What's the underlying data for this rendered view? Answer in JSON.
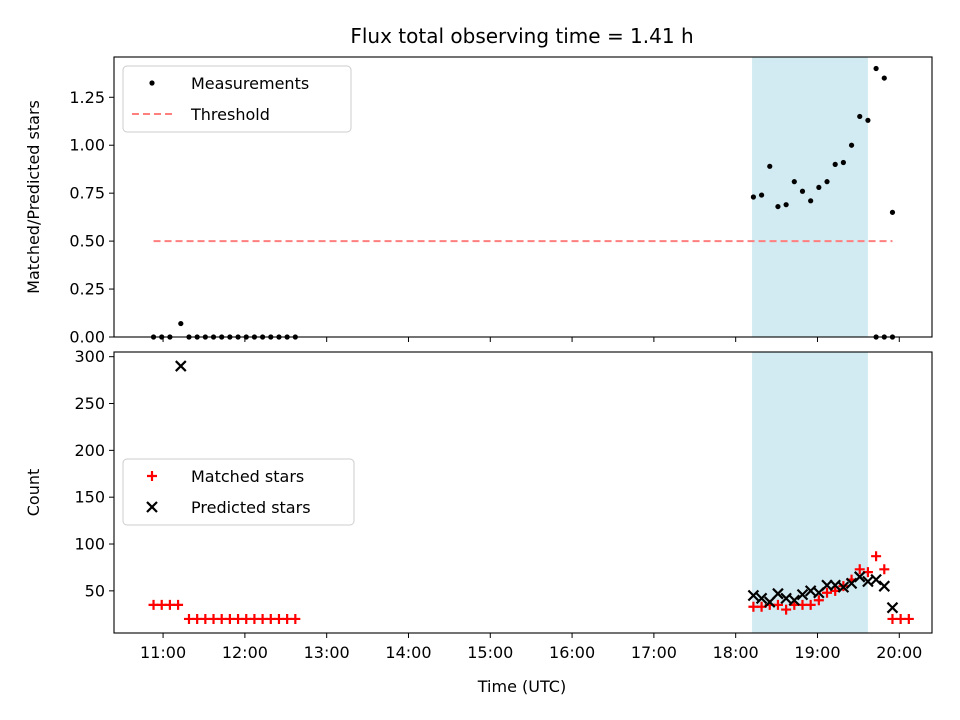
{
  "chart_data": [
    {
      "type": "scatter",
      "title": "Flux total observing time = 1.41 h",
      "xlabel": "",
      "ylabel": "Matched/Predicted stars",
      "ylim": [
        0,
        1.46
      ],
      "yticks": [
        "0.00",
        "0.25",
        "0.50",
        "0.75",
        "1.00",
        "1.25"
      ],
      "ytick_values": [
        0,
        0.25,
        0.5,
        0.75,
        1.0,
        1.25
      ],
      "legend_position": "upper-left",
      "shaded_span": {
        "start": "18:12",
        "end": "19:37",
        "color": "#add8e6"
      },
      "series": [
        {
          "name": "Measurements",
          "color": "#000000",
          "marker": "dot",
          "points": [
            [
              "10:53",
              0
            ],
            [
              "10:59",
              0
            ],
            [
              "11:05",
              0
            ],
            [
              "11:13",
              0.07
            ],
            [
              "11:19",
              0
            ],
            [
              "11:25",
              0
            ],
            [
              "11:31",
              0
            ],
            [
              "11:37",
              0
            ],
            [
              "11:43",
              0
            ],
            [
              "11:49",
              0
            ],
            [
              "11:55",
              0
            ],
            [
              "12:01",
              0
            ],
            [
              "12:07",
              0
            ],
            [
              "12:13",
              0
            ],
            [
              "12:19",
              0
            ],
            [
              "12:25",
              0
            ],
            [
              "12:31",
              0
            ],
            [
              "12:37",
              0
            ],
            [
              "18:13",
              0.73
            ],
            [
              "18:19",
              0.74
            ],
            [
              "18:25",
              0.89
            ],
            [
              "18:31",
              0.68
            ],
            [
              "18:37",
              0.69
            ],
            [
              "18:43",
              0.81
            ],
            [
              "18:49",
              0.76
            ],
            [
              "18:55",
              0.71
            ],
            [
              "19:01",
              0.78
            ],
            [
              "19:07",
              0.81
            ],
            [
              "19:13",
              0.9
            ],
            [
              "19:19",
              0.91
            ],
            [
              "19:25",
              1.0
            ],
            [
              "19:31",
              1.15
            ],
            [
              "19:37",
              1.13
            ],
            [
              "19:43",
              1.4
            ],
            [
              "19:49",
              1.35
            ],
            [
              "19:55",
              0.65
            ],
            [
              "19:43",
              0
            ],
            [
              "19:49",
              0
            ],
            [
              "19:55",
              0
            ]
          ]
        },
        {
          "name": "Threshold",
          "color": "#ff7f7f",
          "line_style": "dashed",
          "points": [
            [
              "10:53",
              0.5
            ],
            [
              "19:55",
              0.5
            ]
          ]
        }
      ]
    },
    {
      "type": "scatter",
      "xlabel": "Time (UTC)",
      "ylabel": "Count",
      "ylim": [
        5,
        305
      ],
      "yticks": [
        "50",
        "100",
        "150",
        "200",
        "250",
        "300"
      ],
      "ytick_values": [
        50,
        100,
        150,
        200,
        250,
        300
      ],
      "xticks": [
        "11:00",
        "12:00",
        "13:00",
        "14:00",
        "15:00",
        "16:00",
        "17:00",
        "18:00",
        "19:00",
        "20:00"
      ],
      "legend_position": "center-left",
      "shaded_span": {
        "start": "18:12",
        "end": "19:37",
        "color": "#add8e6"
      },
      "series": [
        {
          "name": "Matched stars",
          "color": "#ff0000",
          "marker": "plus",
          "points": [
            [
              "10:53",
              35
            ],
            [
              "10:59",
              35
            ],
            [
              "11:05",
              35
            ],
            [
              "11:11",
              35
            ],
            [
              "11:19",
              20
            ],
            [
              "11:25",
              20
            ],
            [
              "11:31",
              20
            ],
            [
              "11:37",
              20
            ],
            [
              "11:43",
              20
            ],
            [
              "11:49",
              20
            ],
            [
              "11:55",
              20
            ],
            [
              "12:01",
              20
            ],
            [
              "12:07",
              20
            ],
            [
              "12:13",
              20
            ],
            [
              "12:19",
              20
            ],
            [
              "12:25",
              20
            ],
            [
              "12:31",
              20
            ],
            [
              "12:37",
              20
            ],
            [
              "18:13",
              33
            ],
            [
              "18:19",
              33
            ],
            [
              "18:25",
              35
            ],
            [
              "18:31",
              35
            ],
            [
              "18:37",
              30
            ],
            [
              "18:43",
              35
            ],
            [
              "18:49",
              35
            ],
            [
              "18:55",
              35
            ],
            [
              "19:01",
              40
            ],
            [
              "19:07",
              48
            ],
            [
              "19:13",
              50
            ],
            [
              "19:19",
              55
            ],
            [
              "19:25",
              62
            ],
            [
              "19:31",
              73
            ],
            [
              "19:37",
              70
            ],
            [
              "19:43",
              87
            ],
            [
              "19:49",
              73
            ],
            [
              "19:55",
              20
            ],
            [
              "20:01",
              20
            ],
            [
              "20:07",
              20
            ]
          ]
        },
        {
          "name": "Predicted stars",
          "color": "#000000",
          "marker": "x",
          "points": [
            [
              "11:13",
              290
            ],
            [
              "18:13",
              45
            ],
            [
              "18:19",
              42
            ],
            [
              "18:25",
              38
            ],
            [
              "18:31",
              47
            ],
            [
              "18:37",
              42
            ],
            [
              "18:43",
              40
            ],
            [
              "18:49",
              46
            ],
            [
              "18:55",
              50
            ],
            [
              "19:01",
              48
            ],
            [
              "19:07",
              56
            ],
            [
              "19:13",
              56
            ],
            [
              "19:19",
              54
            ],
            [
              "19:25",
              58
            ],
            [
              "19:31",
              65
            ],
            [
              "19:37",
              60
            ],
            [
              "19:43",
              62
            ],
            [
              "19:49",
              55
            ],
            [
              "19:55",
              32
            ]
          ]
        }
      ]
    }
  ]
}
